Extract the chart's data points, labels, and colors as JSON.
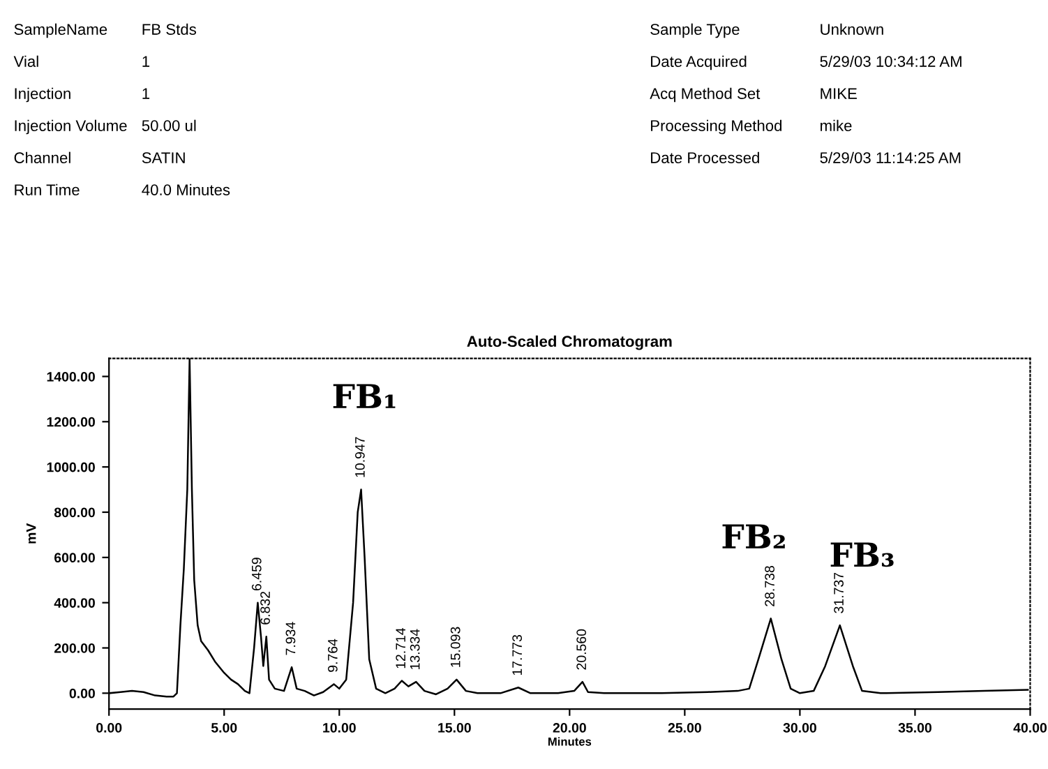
{
  "chart_data": {
    "type": "line",
    "title": "Auto-Scaled Chromatogram",
    "xlabel": "Minutes",
    "ylabel": "mV",
    "x": [
      0,
      0.5,
      1.0,
      1.5,
      2.0,
      2.5,
      2.8,
      2.95,
      3.1,
      3.25,
      3.4,
      3.5,
      3.6,
      3.7,
      3.85,
      4.0,
      4.3,
      4.6,
      5.0,
      5.3,
      5.6,
      5.9,
      6.1,
      6.3,
      6.459,
      6.6,
      6.7,
      6.832,
      6.95,
      7.2,
      7.6,
      7.934,
      8.15,
      8.5,
      8.9,
      9.3,
      9.764,
      10.0,
      10.3,
      10.6,
      10.8,
      10.947,
      11.1,
      11.3,
      11.6,
      12.0,
      12.4,
      12.714,
      13.0,
      13.334,
      13.7,
      14.2,
      14.7,
      15.093,
      15.5,
      16.0,
      17.0,
      17.773,
      18.3,
      19.5,
      20.2,
      20.56,
      20.8,
      21.5,
      24,
      26,
      27.3,
      27.8,
      28.2,
      28.738,
      29.2,
      29.6,
      30.0,
      30.6,
      31.1,
      31.737,
      32.3,
      32.7,
      33.5,
      36,
      38,
      39.9
    ],
    "series": [
      {
        "color": "#000000",
        "values": [
          0,
          5,
          10,
          5,
          -10,
          -15,
          -15,
          0,
          300,
          550,
          900,
          1480,
          900,
          500,
          300,
          230,
          190,
          140,
          90,
          60,
          40,
          10,
          0,
          200,
          400,
          250,
          120,
          250,
          60,
          20,
          10,
          115,
          20,
          10,
          -10,
          5,
          40,
          20,
          60,
          400,
          800,
          900,
          600,
          150,
          20,
          0,
          20,
          55,
          30,
          50,
          10,
          -5,
          20,
          60,
          10,
          0,
          0,
          25,
          0,
          0,
          10,
          50,
          5,
          0,
          0,
          5,
          10,
          20,
          150,
          330,
          150,
          20,
          0,
          10,
          120,
          300,
          120,
          10,
          0,
          5,
          10,
          15
        ]
      }
    ],
    "xlim": [
      0,
      40
    ],
    "ylim": [
      -70,
      1480
    ],
    "xticks": [
      {
        "value": 0,
        "label": "0.00"
      },
      {
        "value": 5,
        "label": "5.00"
      },
      {
        "value": 10,
        "label": "10.00"
      },
      {
        "value": 15,
        "label": "15.00"
      },
      {
        "value": 20,
        "label": "20.00"
      },
      {
        "value": 25,
        "label": "25.00"
      },
      {
        "value": 30,
        "label": "30.00"
      },
      {
        "value": 35,
        "label": "35.00"
      },
      {
        "value": 40,
        "label": "40.00"
      }
    ],
    "yticks": [
      {
        "value": 0,
        "label": "0.00"
      },
      {
        "value": 200,
        "label": "200.00"
      },
      {
        "value": 400,
        "label": "400.00"
      },
      {
        "value": 600,
        "label": "600.00"
      },
      {
        "value": 800,
        "label": "800.00"
      },
      {
        "value": 1000,
        "label": "1000.00"
      },
      {
        "value": 1200,
        "label": "1200.00"
      },
      {
        "value": 1400,
        "label": "1400.00"
      }
    ],
    "grid": false,
    "line_style": "solid",
    "marker": "none",
    "annotations": [
      "SampleName",
      "FB Stds",
      "Vial",
      "1",
      "Injection",
      "1",
      "Injection Volume",
      "50.00 ul",
      "Channel",
      "SATIN",
      "Run Time",
      "40.0 Minutes",
      "Sample Type",
      "Unknown",
      "Date Acquired",
      "5/29/03 10:34:12 AM",
      "Acq Method Set",
      "MIKE",
      "Processing Method",
      "mike",
      "Date Processed",
      "5/29/03 11:14:25 AM",
      {
        "text": "6.459",
        "x": 6.459,
        "y": 400
      },
      {
        "text": "6.832",
        "x": 6.832,
        "y": 250
      },
      {
        "text": "7.934",
        "x": 7.934,
        "y": 115
      },
      {
        "text": "9.764",
        "x": 9.764,
        "y": 40
      },
      {
        "text": "10.947",
        "x": 10.947,
        "y": 900
      },
      {
        "text": "12.714",
        "x": 12.714,
        "y": 55
      },
      {
        "text": "13.334",
        "x": 13.334,
        "y": 50
      },
      {
        "text": "15.093",
        "x": 15.093,
        "y": 60
      },
      {
        "text": "17.773",
        "x": 17.773,
        "y": 25
      },
      {
        "text": "20.560",
        "x": 20.56,
        "y": 50
      },
      {
        "text": "28.738",
        "x": 28.738,
        "y": 330
      },
      {
        "text": "31.737",
        "x": 31.737,
        "y": 300
      },
      "FB₁",
      "FB₂",
      "FB₃"
    ]
  }
}
